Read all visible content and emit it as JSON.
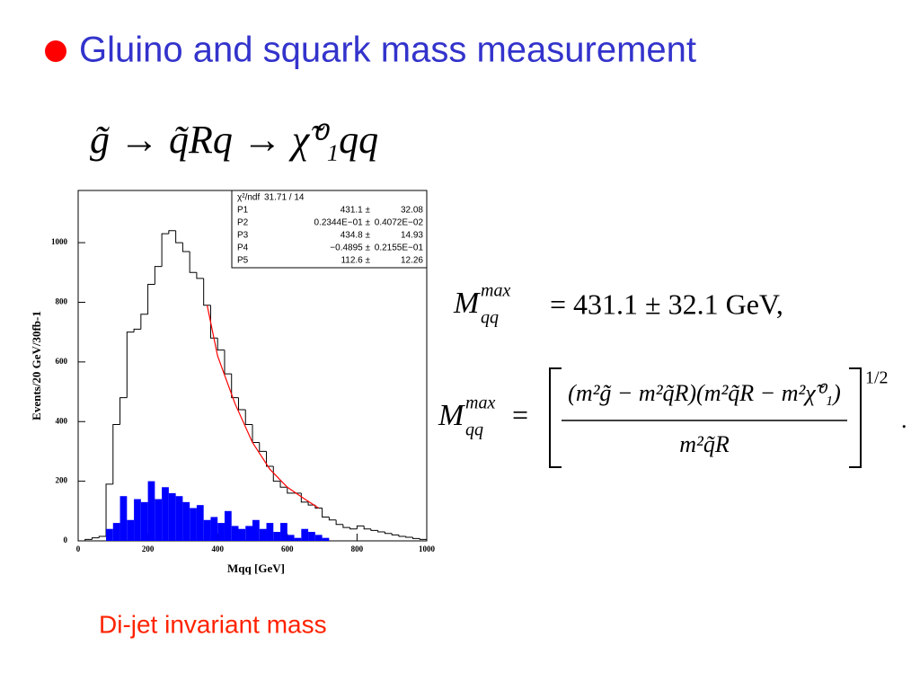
{
  "title": "Gluino and squark mass measurement",
  "decay": "g̃ → q̃Rq → χ̃⁰₁qq",
  "eq1": {
    "base": "M",
    "sub": "qq",
    "sup": "max",
    "rhs": "=  431.1 ± 32.1  GeV,"
  },
  "eq2": {
    "base": "M",
    "sub": "qq",
    "sup": "max",
    "eq": "=",
    "numerator": "(m²g̃ − m²q̃R)(m²q̃R − m²χ̃⁰₁)",
    "denominator": "m²q̃R",
    "exponent": "1/2",
    "end": "."
  },
  "caption": "Di-jet invariant mass",
  "stats": [
    [
      "χ²/ndf",
      "31.71  /  14"
    ],
    [
      "P1",
      "431.1 ±",
      "32.08"
    ],
    [
      "P2",
      "0.2344E−01 ±",
      "0.4072E−02"
    ],
    [
      "P3",
      "434.8 ±",
      "14.93"
    ],
    [
      "P4",
      "−0.4895 ±",
      "0.2155E−01"
    ],
    [
      "P5",
      "112.6 ±",
      "12.26"
    ]
  ],
  "chart_data": {
    "type": "histogram",
    "y_label": "Events/20 GeV/30fb-1",
    "x_label": "Mqq   [GeV]",
    "bins": [
      0,
      20,
      40,
      60,
      80,
      100,
      120,
      140,
      160,
      180,
      200,
      220,
      240,
      260,
      280,
      300,
      320,
      340,
      360,
      380,
      400,
      420,
      440,
      460,
      480,
      500,
      520,
      540,
      560,
      580,
      600,
      620,
      640,
      660,
      680,
      700,
      720,
      740,
      760,
      780,
      800,
      820,
      840,
      860,
      880,
      900,
      920,
      940,
      960,
      980,
      1000
    ],
    "series": [
      {
        "color": "#000000",
        "fill": false,
        "values": [
          0,
          5,
          10,
          15,
          190,
          390,
          480,
          700,
          710,
          760,
          860,
          920,
          1030,
          1040,
          1000,
          970,
          900,
          880,
          790,
          680,
          640,
          560,
          480,
          440,
          390,
          330,
          300,
          250,
          200,
          180,
          160,
          160,
          130,
          120,
          110,
          80,
          70,
          55,
          45,
          40,
          50,
          40,
          35,
          30,
          25,
          20,
          15,
          12,
          8,
          5
        ]
      },
      {
        "color": "#0000ff",
        "fill": true,
        "values": [
          0,
          0,
          0,
          0,
          40,
          60,
          150,
          70,
          140,
          130,
          200,
          140,
          180,
          160,
          150,
          130,
          110,
          120,
          70,
          80,
          60,
          100,
          50,
          40,
          50,
          70,
          40,
          60,
          30,
          60,
          20,
          10,
          40,
          30,
          20,
          10,
          0,
          0,
          0,
          0,
          0,
          0,
          0,
          0,
          0,
          0,
          0,
          0,
          0,
          0
        ]
      }
    ],
    "fit": {
      "color": "#ff0000",
      "x": [
        370,
        400,
        450,
        500,
        550,
        600,
        650,
        690
      ],
      "values": [
        790,
        620,
        460,
        330,
        240,
        180,
        140,
        110
      ]
    },
    "xlim": [
      0,
      1000
    ],
    "ylim": [
      0,
      1175
    ],
    "xticks": [
      0,
      200,
      400,
      600,
      800,
      1000
    ],
    "yticks": [
      0,
      200,
      400,
      600,
      800,
      1000
    ]
  }
}
